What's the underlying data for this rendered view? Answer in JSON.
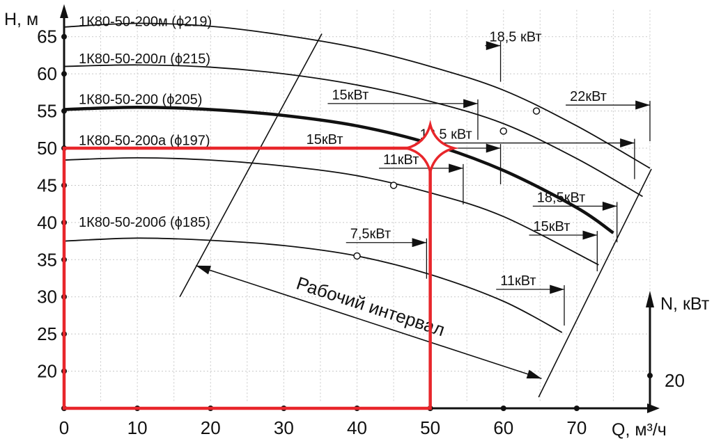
{
  "chart_data": {
    "type": "line",
    "title": "",
    "xlabel": "Q, м³/ч",
    "ylabel": "Н, м",
    "y2label": "N, кВт",
    "xlim": [
      0,
      80
    ],
    "ylim": [
      15,
      69
    ],
    "x_ticks": [
      "0",
      "10",
      "20",
      "30",
      "40",
      "50",
      "60",
      "70"
    ],
    "y_ticks": [
      "20",
      "25",
      "30",
      "35",
      "40",
      "45",
      "50",
      "55",
      "60",
      "65"
    ],
    "y2_tick": "20",
    "grid": true,
    "series": [
      {
        "name": "1К80-50-200м (ϕ219)",
        "x": [
          0,
          10,
          20,
          30,
          40,
          50,
          60,
          70,
          80
        ],
        "y": [
          66.3,
          66.8,
          66.4,
          65.2,
          63.5,
          61.0,
          57.8,
          53.0,
          47.3
        ]
      },
      {
        "name": "1К80-50-200л (ϕ215)",
        "x": [
          0,
          10,
          20,
          30,
          40,
          50,
          60,
          70,
          79
        ],
        "y": [
          61.0,
          61.2,
          60.9,
          60.0,
          58.5,
          56.3,
          53.3,
          48.6,
          43.5
        ]
      },
      {
        "name": "1К80-50-200 (ϕ205)",
        "x": [
          0,
          10,
          20,
          30,
          40,
          50,
          60,
          70,
          75
        ],
        "y": [
          55.2,
          55.5,
          55.2,
          54.4,
          53.0,
          50.6,
          47.0,
          42.0,
          38.6
        ]
      },
      {
        "name": "1К80-50-200а (ϕ197)",
        "x": [
          0,
          10,
          20,
          30,
          40,
          50,
          60,
          73
        ],
        "y": [
          48.4,
          48.7,
          48.4,
          47.6,
          46.3,
          44.0,
          40.8,
          34.3
        ]
      },
      {
        "name": "1К80-50-200б (ϕ185)",
        "x": [
          0,
          10,
          20,
          30,
          40,
          50,
          60,
          68
        ],
        "y": [
          37.5,
          37.9,
          37.6,
          36.9,
          35.5,
          33.0,
          29.4,
          25.2
        ]
      }
    ],
    "operating_points": [
      {
        "x": 64.5,
        "y": 55.0
      },
      {
        "x": 60.0,
        "y": 52.3
      },
      {
        "x": 50.0,
        "y": 50.0
      },
      {
        "x": 45.0,
        "y": 45.0
      },
      {
        "x": 40.0,
        "y": 35.5
      }
    ],
    "power_labels": [
      {
        "text": "18,5 кВт",
        "x": 57.5,
        "y": 63.8,
        "line_to": 59.6
      },
      {
        "text": "22кВт",
        "x": 68.5,
        "y": 55.8,
        "line_to": 80.0
      },
      {
        "text": "15кВт",
        "x": 36.0,
        "y": 56.0,
        "line_to": 56.5
      },
      {
        "text": "18,5 кВт",
        "x": 48.0,
        "y": 50.7,
        "line_to": 77.9
      },
      {
        "text": "15кВт",
        "x": 32.5,
        "y": 50.0,
        "line_to": 59.6
      },
      {
        "text": "11кВт",
        "x": 43.0,
        "y": 47.3,
        "line_to": 54.5
      },
      {
        "text": "18,5кВт",
        "x": 64.0,
        "y": 42.2,
        "line_to": 75.5
      },
      {
        "text": "15кВт",
        "x": 63.5,
        "y": 38.3,
        "line_to": 72.8
      },
      {
        "text": "7,5кВт",
        "x": 38.5,
        "y": 37.3,
        "line_to": 49.5
      },
      {
        "text": "11кВт",
        "x": 59.0,
        "y": 31.0,
        "line_to": 68.3
      }
    ],
    "annotation": "Рабочий интервал",
    "highlight": {
      "x": 50,
      "y": 50,
      "color": "#e8262b"
    }
  }
}
